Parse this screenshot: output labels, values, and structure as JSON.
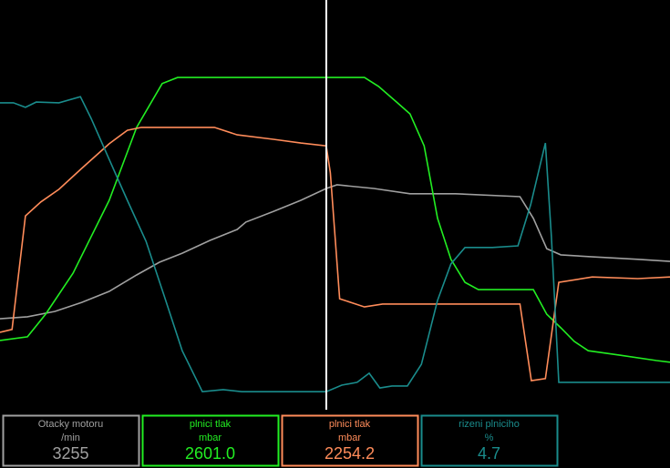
{
  "chart_data": {
    "type": "line",
    "xlim": [
      0,
      100
    ],
    "ylim": [
      0,
      100
    ],
    "cursor_x": 48.7,
    "series": [
      {
        "name": "Otacky motoru",
        "unit": "/min",
        "color": "#a0a0a0",
        "readout": 3255,
        "x": [
          0,
          4.1,
          8.2,
          12.2,
          16.3,
          20.4,
          23.8,
          27.2,
          31.3,
          35.4,
          36.7,
          40.8,
          44.9,
          48.7,
          50.3,
          55.8,
          61.2,
          68.0,
          77.6,
          79.6,
          81.6,
          83.7,
          88.4,
          95.2,
          100
        ],
        "values": [
          22.2,
          22.7,
          24.0,
          26.2,
          28.9,
          32.9,
          36.0,
          38.2,
          41.3,
          44.0,
          45.8,
          48.4,
          51.1,
          54.0,
          54.9,
          54.0,
          52.7,
          52.7,
          52.0,
          46.7,
          39.3,
          37.8,
          37.3,
          36.7,
          36.2
        ]
      },
      {
        "name": "plnici tlak",
        "unit": "mbar",
        "color": "#22ee22",
        "readout": 2601.0,
        "readout_label": "2601.0",
        "x": [
          0,
          4.1,
          6.8,
          10.9,
          16.3,
          20.4,
          24.2,
          26.5,
          54.4,
          56.5,
          59.2,
          61.2,
          63.3,
          65.3,
          67.3,
          69.4,
          71.4,
          79.6,
          81.6,
          83.7,
          85.7,
          87.8,
          92.5,
          98.0,
          100
        ],
        "values": [
          16.9,
          17.8,
          23.3,
          33.3,
          51.1,
          68.9,
          79.6,
          81.1,
          81.1,
          78.9,
          75.1,
          72.2,
          64.4,
          46.7,
          36.7,
          31.1,
          29.3,
          29.3,
          23.3,
          20.0,
          16.7,
          14.4,
          13.3,
          12.0,
          11.6
        ]
      },
      {
        "name": "plnici tlak",
        "unit": "mbar",
        "color": "#ff8c5a",
        "readout": 2254.2,
        "x": [
          0,
          1.8,
          3.8,
          6.1,
          8.8,
          12.2,
          16.3,
          19.0,
          21.1,
          32.0,
          35.4,
          40.8,
          44.9,
          48.7,
          49.3,
          50.7,
          54.4,
          57.1,
          77.6,
          79.3,
          81.4,
          83.4,
          88.4,
          95.2,
          100
        ],
        "values": [
          18.9,
          19.6,
          47.3,
          50.7,
          53.8,
          58.9,
          64.9,
          68.2,
          68.9,
          68.9,
          67.1,
          66.0,
          65.1,
          64.4,
          57.8,
          27.1,
          25.1,
          25.8,
          25.8,
          7.1,
          7.6,
          31.1,
          32.4,
          32.0,
          32.4
        ]
      },
      {
        "name": "rizeni plniciho",
        "unit": "%",
        "color": "#1a8c8c",
        "readout": 4.7,
        "x": [
          0,
          2.0,
          3.8,
          5.4,
          8.8,
          12.0,
          13.6,
          16.3,
          19.0,
          21.8,
          24.5,
          27.2,
          30.2,
          33.3,
          36.1,
          39.5,
          48.7,
          51.0,
          53.3,
          55.1,
          56.7,
          58.5,
          60.8,
          62.9,
          65.3,
          67.3,
          69.4,
          73.5,
          77.3,
          79.2,
          81.4,
          82.3,
          83.4,
          100
        ],
        "values": [
          74.9,
          74.9,
          73.8,
          75.1,
          74.9,
          76.4,
          71.1,
          61.1,
          51.1,
          41.1,
          27.8,
          14.4,
          4.4,
          4.9,
          4.4,
          4.4,
          4.4,
          6.0,
          6.7,
          8.9,
          5.3,
          5.8,
          5.8,
          11.1,
          26.7,
          35.6,
          39.6,
          39.6,
          40.0,
          50.0,
          65.1,
          42.2,
          6.7,
          6.7
        ]
      }
    ]
  }
}
